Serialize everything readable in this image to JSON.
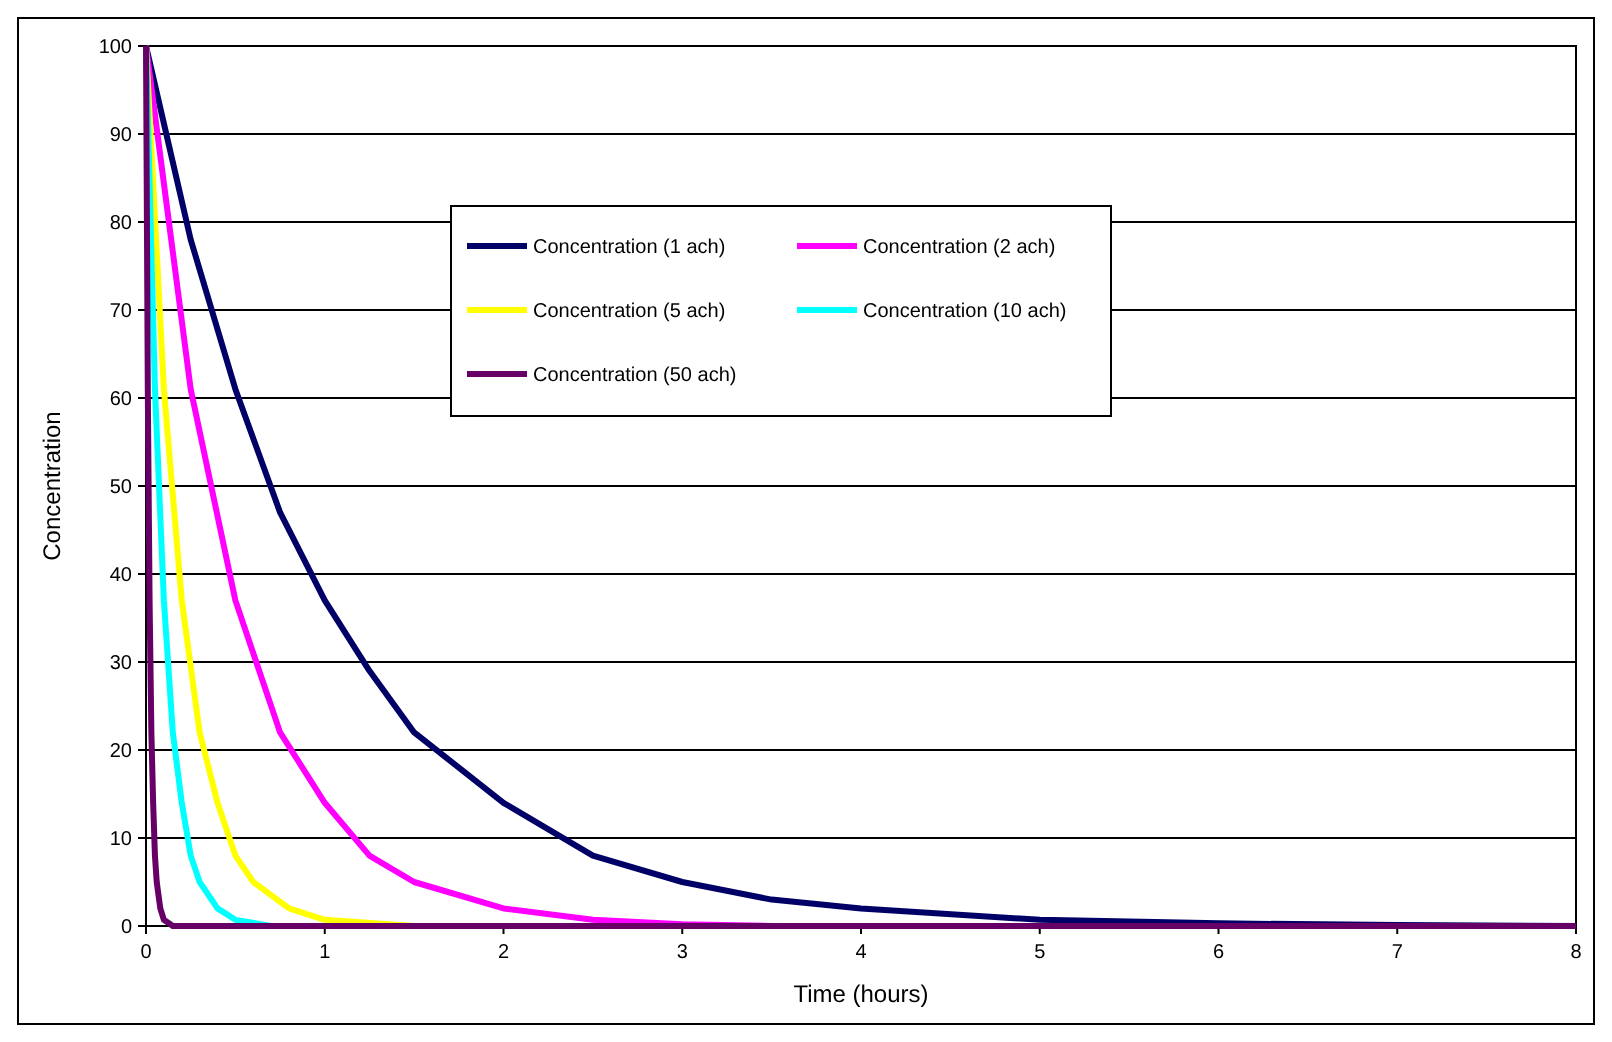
{
  "chart_data": {
    "type": "line",
    "xlabel": "Time (hours)",
    "ylabel": "Concentration",
    "xlim": [
      0,
      8
    ],
    "xticks": [
      0,
      1,
      2,
      3,
      4,
      5,
      6,
      7,
      8
    ],
    "ylim": [
      0,
      100
    ],
    "yticks": [
      0,
      10,
      20,
      30,
      40,
      50,
      60,
      70,
      80,
      90,
      100
    ],
    "grid": "y",
    "legend": "top",
    "marker": "none",
    "line_style": "solid",
    "series": [
      {
        "name": "Concentration (1 ach)",
        "color": "#000066",
        "x": [
          0,
          0.25,
          0.5,
          0.75,
          1,
          1.25,
          1.5,
          2,
          2.5,
          3,
          3.5,
          4,
          5,
          6,
          7,
          8
        ],
        "values": [
          100,
          78,
          61,
          47,
          37,
          29,
          22,
          14,
          8,
          5,
          3,
          2,
          0.7,
          0.3,
          0.1,
          0
        ]
      },
      {
        "name": "Concentration (2 ach)",
        "color": "#ff00ff",
        "x": [
          0,
          0.25,
          0.5,
          0.75,
          1,
          1.25,
          1.5,
          2,
          2.5,
          3,
          3.5
        ],
        "values": [
          100,
          61,
          37,
          22,
          14,
          8,
          5,
          2,
          0.7,
          0.2,
          0
        ]
      },
      {
        "name": "Concentration (5 ach)",
        "color": "#ffff00",
        "x": [
          0,
          0.1,
          0.2,
          0.3,
          0.4,
          0.5,
          0.6,
          0.8,
          1,
          1.5
        ],
        "values": [
          100,
          61,
          37,
          22,
          14,
          8,
          5,
          2,
          0.7,
          0
        ]
      },
      {
        "name": "Concentration (10 ach)",
        "color": "#00ffff",
        "x": [
          0,
          0.05,
          0.1,
          0.15,
          0.2,
          0.25,
          0.3,
          0.4,
          0.5,
          0.7
        ],
        "values": [
          100,
          61,
          37,
          22,
          14,
          8,
          5,
          2,
          0.7,
          0
        ]
      },
      {
        "name": "Concentration (50 ach)",
        "color": "#660066",
        "x": [
          0,
          0.01,
          0.02,
          0.03,
          0.04,
          0.05,
          0.06,
          0.08,
          0.1,
          0.15,
          8
        ],
        "values": [
          100,
          61,
          37,
          22,
          14,
          8,
          5,
          2,
          0.7,
          0,
          0
        ]
      }
    ]
  }
}
